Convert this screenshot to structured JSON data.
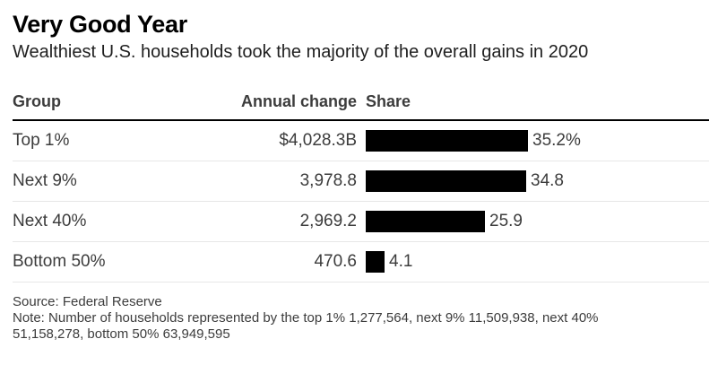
{
  "header": {
    "title": "Very Good Year",
    "subtitle": "Wealthiest U.S. households took the majority of the overall gains in 2020"
  },
  "table": {
    "headers": {
      "group": "Group",
      "annual_change": "Annual change",
      "share": "Share"
    },
    "rows": [
      {
        "group": "Top 1%",
        "annual_change": "$4,028.3B",
        "share_label": "35.2%",
        "share_value": 35.2
      },
      {
        "group": "Next 9%",
        "annual_change": "3,978.8",
        "share_label": "34.8",
        "share_value": 34.8
      },
      {
        "group": "Next 40%",
        "annual_change": "2,969.2",
        "share_label": "25.9",
        "share_value": 25.9
      },
      {
        "group": "Bottom 50%",
        "annual_change": "470.6",
        "share_label": "4.1",
        "share_value": 4.1
      }
    ]
  },
  "footer": {
    "source": "Source: Federal Reserve",
    "note": "Note: Number of households represented by the top 1% 1,277,564, next 9% 11,509,938, next 40% 51,158,278, bottom 50% 63,949,595"
  },
  "colors": {
    "bar": "#000000",
    "header_rule": "#000000",
    "row_divider": "#e7e7e7",
    "title_text": "#000000",
    "body_text": "#3c3c3c"
  },
  "chart_data": {
    "type": "bar",
    "orientation": "horizontal",
    "title": "Very Good Year",
    "subtitle": "Wealthiest U.S. households took the majority of the overall gains in 2020",
    "categories": [
      "Top 1%",
      "Next 9%",
      "Next 40%",
      "Bottom 50%"
    ],
    "series": [
      {
        "name": "Annual change ($B)",
        "values": [
          4028.3,
          3978.8,
          2969.2,
          470.6
        ]
      },
      {
        "name": "Share (%)",
        "values": [
          35.2,
          34.8,
          25.9,
          4.1
        ]
      }
    ],
    "value_axis_range": [
      0,
      73
    ],
    "grid": false,
    "legend": "none",
    "bar_color": "#000000",
    "source": "Federal Reserve",
    "note": "Number of households represented by the top 1% 1,277,564, next 9% 11,509,938, next 40% 51,158,278, bottom 50% 63,949,595"
  }
}
